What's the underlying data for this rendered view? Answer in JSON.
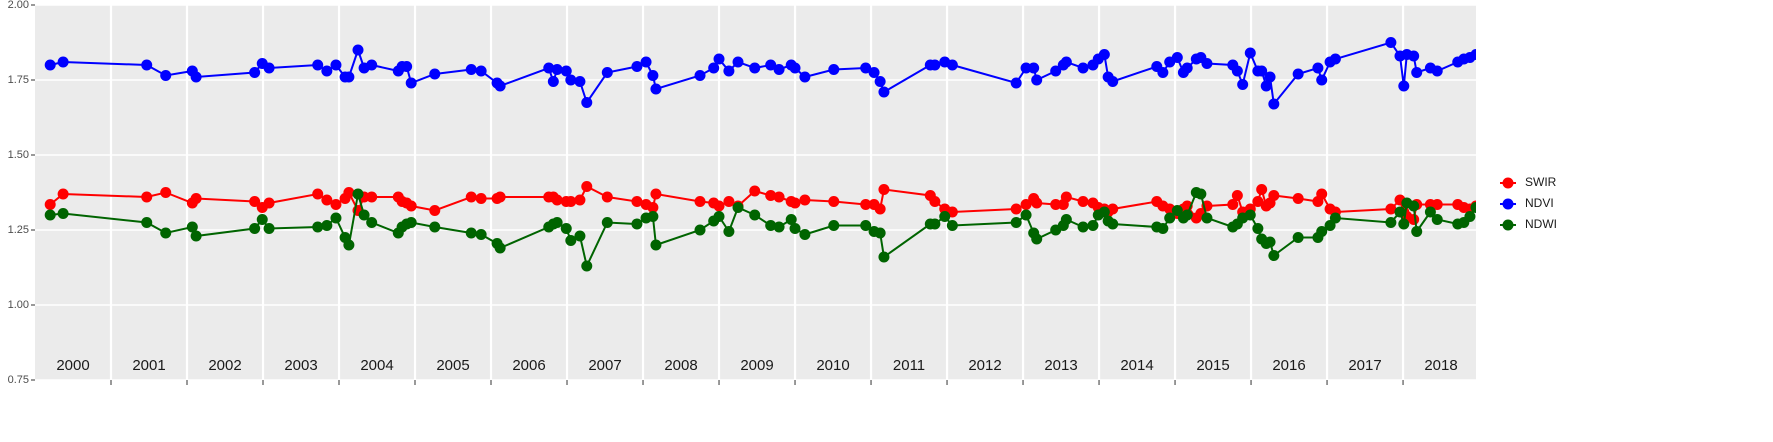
{
  "chart_data": {
    "type": "line",
    "x": [
      2000.2,
      2000.37,
      2001.47,
      2001.72,
      2002.07,
      2002.12,
      2002.89,
      2002.99,
      2003.08,
      2003.72,
      2003.84,
      2003.96,
      2004.08,
      2004.13,
      2004.25,
      2004.33,
      2004.43,
      2004.78,
      2004.83,
      2004.89,
      2004.95,
      2005.26,
      2005.74,
      2005.87,
      2006.08,
      2006.12,
      2006.76,
      2006.82,
      2006.87,
      2006.99,
      2007.05,
      2007.17,
      2007.26,
      2007.53,
      2007.92,
      2008.04,
      2008.13,
      2008.17,
      2008.75,
      2008.93,
      2009.0,
      2009.13,
      2009.25,
      2009.47,
      2009.68,
      2009.79,
      2009.95,
      2010.0,
      2010.13,
      2010.51,
      2010.93,
      2011.04,
      2011.12,
      2011.17,
      2011.78,
      2011.84,
      2011.97,
      2012.07,
      2012.91,
      2013.04,
      2013.14,
      2013.18,
      2013.43,
      2013.53,
      2013.57,
      2013.79,
      2013.92,
      2013.99,
      2014.07,
      2014.12,
      2014.18,
      2014.76,
      2014.84,
      2014.93,
      2015.03,
      2015.11,
      2015.16,
      2015.28,
      2015.34,
      2015.42,
      2015.76,
      2015.82,
      2015.89,
      2015.99,
      2016.09,
      2016.14,
      2016.2,
      2016.25,
      2016.3,
      2016.62,
      2016.88,
      2016.93,
      2017.04,
      2017.11,
      2017.84,
      2017.96,
      2018.01,
      2018.05,
      2018.14,
      2018.18,
      2018.36,
      2018.45,
      2018.72,
      2018.8,
      2018.88,
      2018.96
    ],
    "series": [
      {
        "name": "SWIR",
        "color": "#ff0000",
        "values": [
          1.335,
          1.37,
          1.36,
          1.375,
          1.34,
          1.355,
          1.345,
          1.325,
          1.34,
          1.37,
          1.35,
          1.335,
          1.355,
          1.375,
          1.315,
          1.36,
          1.36,
          1.36,
          1.345,
          1.34,
          1.33,
          1.315,
          1.36,
          1.355,
          1.355,
          1.36,
          1.36,
          1.36,
          1.35,
          1.345,
          1.345,
          1.35,
          1.395,
          1.36,
          1.345,
          1.335,
          1.325,
          1.37,
          1.345,
          1.34,
          1.33,
          1.345,
          1.33,
          1.38,
          1.365,
          1.36,
          1.345,
          1.34,
          1.35,
          1.345,
          1.335,
          1.335,
          1.32,
          1.385,
          1.365,
          1.345,
          1.32,
          1.31,
          1.32,
          1.335,
          1.355,
          1.34,
          1.335,
          1.335,
          1.36,
          1.345,
          1.34,
          1.325,
          1.32,
          1.31,
          1.32,
          1.345,
          1.33,
          1.32,
          1.305,
          1.32,
          1.33,
          1.29,
          1.305,
          1.33,
          1.335,
          1.365,
          1.31,
          1.32,
          1.345,
          1.385,
          1.33,
          1.34,
          1.365,
          1.355,
          1.345,
          1.37,
          1.32,
          1.31,
          1.32,
          1.35,
          1.31,
          1.295,
          1.285,
          1.335,
          1.335,
          1.335,
          1.335,
          1.325,
          1.32,
          1.33
        ]
      },
      {
        "name": "NDVI",
        "color": "#0000ff",
        "values": [
          1.8,
          1.81,
          1.8,
          1.765,
          1.78,
          1.76,
          1.775,
          1.805,
          1.79,
          1.8,
          1.78,
          1.8,
          1.76,
          1.76,
          1.85,
          1.79,
          1.8,
          1.78,
          1.795,
          1.795,
          1.74,
          1.77,
          1.785,
          1.78,
          1.74,
          1.73,
          1.79,
          1.745,
          1.785,
          1.78,
          1.75,
          1.745,
          1.675,
          1.775,
          1.795,
          1.81,
          1.765,
          1.72,
          1.765,
          1.79,
          1.82,
          1.78,
          1.81,
          1.79,
          1.8,
          1.785,
          1.8,
          1.79,
          1.76,
          1.785,
          1.79,
          1.775,
          1.745,
          1.71,
          1.8,
          1.8,
          1.81,
          1.8,
          1.74,
          1.79,
          1.79,
          1.75,
          1.78,
          1.8,
          1.81,
          1.79,
          1.8,
          1.82,
          1.835,
          1.76,
          1.745,
          1.795,
          1.775,
          1.81,
          1.825,
          1.775,
          1.79,
          1.82,
          1.825,
          1.805,
          1.8,
          1.78,
          1.735,
          1.84,
          1.78,
          1.78,
          1.73,
          1.76,
          1.67,
          1.77,
          1.79,
          1.75,
          1.81,
          1.82,
          1.875,
          1.83,
          1.73,
          1.835,
          1.83,
          1.775,
          1.79,
          1.78,
          1.81,
          1.82,
          1.825,
          1.835
        ]
      },
      {
        "name": "NDWI",
        "color": "#006400",
        "values": [
          1.3,
          1.305,
          1.275,
          1.24,
          1.26,
          1.23,
          1.255,
          1.285,
          1.255,
          1.26,
          1.265,
          1.29,
          1.225,
          1.2,
          1.37,
          1.3,
          1.275,
          1.24,
          1.26,
          1.27,
          1.275,
          1.26,
          1.24,
          1.235,
          1.205,
          1.19,
          1.26,
          1.27,
          1.275,
          1.255,
          1.215,
          1.23,
          1.13,
          1.275,
          1.27,
          1.29,
          1.295,
          1.2,
          1.25,
          1.28,
          1.295,
          1.245,
          1.325,
          1.3,
          1.265,
          1.26,
          1.285,
          1.255,
          1.235,
          1.265,
          1.265,
          1.245,
          1.24,
          1.16,
          1.27,
          1.27,
          1.295,
          1.265,
          1.275,
          1.3,
          1.24,
          1.22,
          1.25,
          1.265,
          1.285,
          1.26,
          1.265,
          1.3,
          1.31,
          1.28,
          1.27,
          1.26,
          1.255,
          1.29,
          1.315,
          1.29,
          1.3,
          1.375,
          1.37,
          1.29,
          1.26,
          1.27,
          1.29,
          1.3,
          1.255,
          1.22,
          1.205,
          1.21,
          1.165,
          1.225,
          1.225,
          1.245,
          1.265,
          1.29,
          1.275,
          1.31,
          1.27,
          1.34,
          1.33,
          1.245,
          1.31,
          1.285,
          1.27,
          1.275,
          1.295,
          1.325
        ]
      }
    ],
    "xlim": [
      2000,
      2018.96
    ],
    "xticks": [
      2001,
      2002,
      2003,
      2004,
      2005,
      2006,
      2007,
      2008,
      2009,
      2010,
      2011,
      2012,
      2013,
      2014,
      2015,
      2016,
      2017,
      2018
    ],
    "ylim": [
      0.75,
      2
    ],
    "yticks": [
      0.75,
      {
        "value": 1,
        "label": "1.00"
      },
      1.25,
      {
        "value": 1.5,
        "label": "1.50"
      },
      1.75,
      {
        "value": 2,
        "label": "2.00"
      }
    ],
    "year_labels": [
      {
        "text": "2000",
        "x": 2000.5
      },
      {
        "text": "2001",
        "x": 2001.5
      },
      {
        "text": "2002",
        "x": 2002.5
      },
      {
        "text": "2003",
        "x": 2003.5
      },
      {
        "text": "2004",
        "x": 2004.5
      },
      {
        "text": "2005",
        "x": 2005.5
      },
      {
        "text": "2006",
        "x": 2006.5
      },
      {
        "text": "2007",
        "x": 2007.5
      },
      {
        "text": "2008",
        "x": 2008.5
      },
      {
        "text": "2009",
        "x": 2009.5
      },
      {
        "text": "2010",
        "x": 2010.5
      },
      {
        "text": "2011",
        "x": 2011.5
      },
      {
        "text": "2012",
        "x": 2012.5
      },
      {
        "text": "2013",
        "x": 2013.5
      },
      {
        "text": "2014",
        "x": 2014.5
      },
      {
        "text": "2015",
        "x": 2015.5
      },
      {
        "text": "2016",
        "x": 2016.5
      },
      {
        "text": "2017",
        "x": 2017.5
      },
      {
        "text": "2018",
        "x": 2018.5
      }
    ],
    "grid": true,
    "legend": "right"
  }
}
